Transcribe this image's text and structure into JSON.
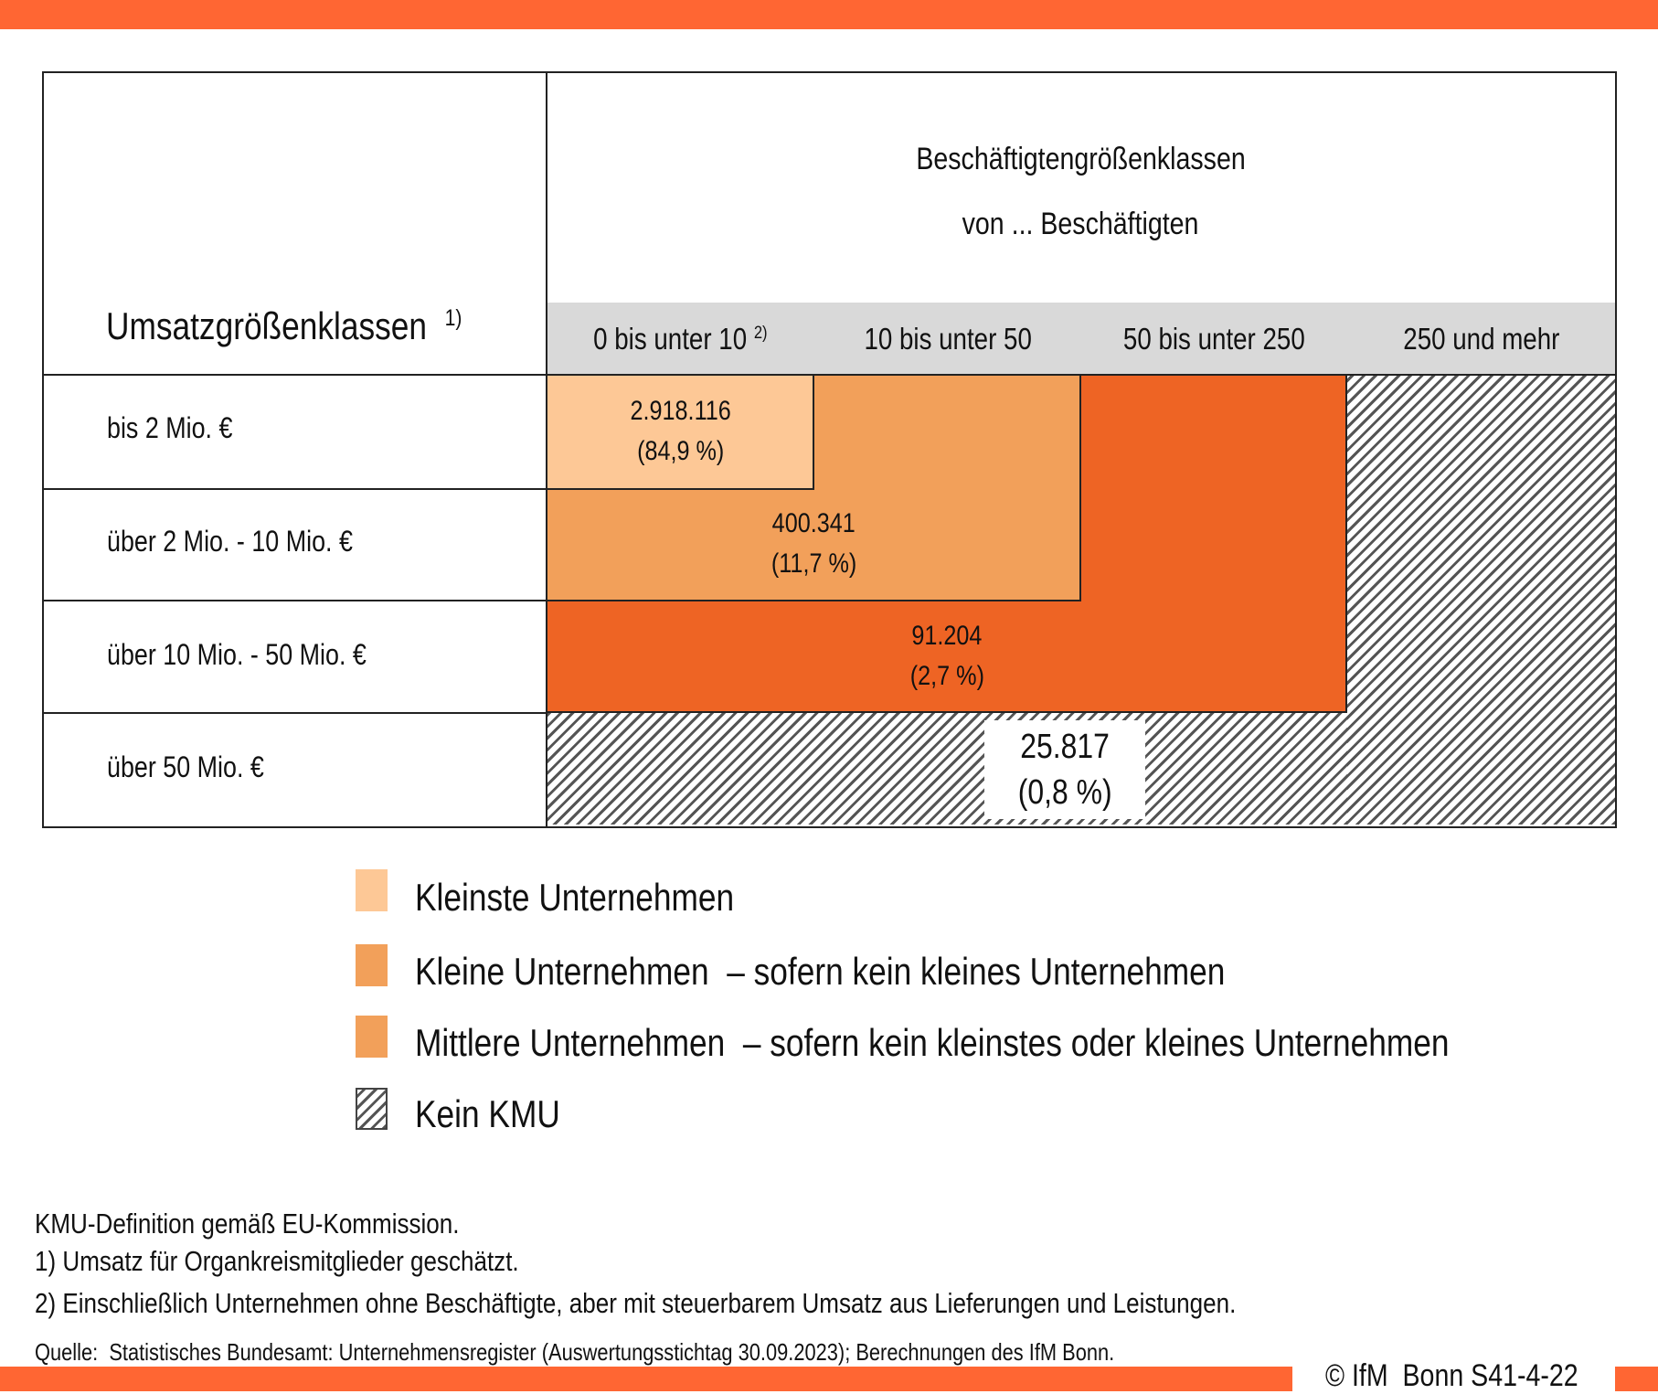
{
  "header": {
    "title_line1": "Beschäftigtengrößenklassen",
    "title_line2": "von ... Beschäftigten",
    "row_header": "Umsatzgrößenklassen",
    "row_header_note": "1)"
  },
  "colors": {
    "brand": "#FF6633",
    "kleinste": "#FDC896",
    "kleine": "#F2A05A",
    "mittlere": "#EE6424",
    "header_gray": "#D9D9D9"
  },
  "chart_data": {
    "type": "table",
    "columns": [
      {
        "label": "0 bis unter 10",
        "note": "2)"
      },
      {
        "label": "10 bis unter 50"
      },
      {
        "label": "50 bis unter 250"
      },
      {
        "label": "250 und mehr"
      }
    ],
    "rows": [
      "bis 2 Mio. €",
      "über 2 Mio. - 10 Mio. €",
      "über 10 Mio. - 50 Mio. €",
      "über 50 Mio. €"
    ],
    "cells": [
      {
        "category": "Kleinste Unternehmen",
        "count": "2.918.116",
        "share": "(84,9 %)"
      },
      {
        "category": "Kleine Unternehmen",
        "count": "400.341",
        "share": "(11,7 %)"
      },
      {
        "category": "Mittlere Unternehmen",
        "count": "91.204",
        "share": "(2,7 %)"
      },
      {
        "category": "Kein KMU",
        "count": "25.817",
        "share": "(0,8 %)"
      }
    ]
  },
  "legend": [
    {
      "label": "Kleinste Unternehmen"
    },
    {
      "label": "Kleine Unternehmen  – sofern kein kleines Unternehmen"
    },
    {
      "label": "Mittlere Unternehmen  – sofern kein kleinstes oder kleines Unternehmen"
    },
    {
      "label": "Kein KMU"
    }
  ],
  "footnotes": {
    "definition": "KMU-Definition gemäß EU-Kommission.",
    "note1": "1) Umsatz für Organkreismitglieder geschätzt.",
    "note2": "2) Einschließlich Unternehmen ohne Beschäftigte, aber mit steuerbarem Umsatz aus Lieferungen und Leistungen.",
    "source": "Quelle:  Statistisches Bundesamt: Unternehmensregister (Auswertungsstichtag 30.09.2023); Berechnungen des IfM Bonn.",
    "copyright": "© IfM  Bonn S41-4-22"
  }
}
